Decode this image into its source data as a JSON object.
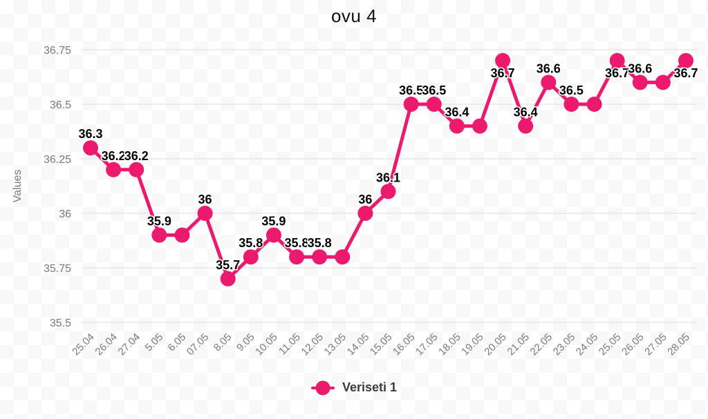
{
  "title": "ovu 4",
  "colors": {
    "series": "#EC1A6E",
    "axis_text": "#7a7a7a",
    "gridline": "#e3e3e3",
    "point_label": "#000000",
    "title": "#111111",
    "legend_text": "#3c3c3c",
    "background": "#ffffff"
  },
  "legend": {
    "position": "bottom",
    "items": [
      {
        "label": "Veriseti 1",
        "color": "#EC1A6E"
      }
    ]
  },
  "chart_data": {
    "type": "line",
    "title": "ovu 4",
    "xlabel": "",
    "ylabel": "Values",
    "x": [
      "25.04",
      "26.04",
      "27.04",
      "5.05",
      "6.05",
      "07.05",
      "8.05",
      "9.05",
      "10.05",
      "11.05",
      "12.05",
      "13.05",
      "14.05",
      "15.05",
      "16.05",
      "17.05",
      "18.05",
      "19.05",
      "20.05",
      "21.05",
      "22.05",
      "23.05",
      "24.05",
      "25.05",
      "26.05",
      "27.05",
      "28.05"
    ],
    "series": [
      {
        "name": "Veriseti 1",
        "color": "#EC1A6E",
        "values": [
          36.3,
          36.2,
          36.2,
          35.9,
          35.9,
          36,
          35.7,
          35.8,
          35.9,
          35.8,
          35.8,
          35.8,
          36,
          36.1,
          36.5,
          36.5,
          36.4,
          36.4,
          36.7,
          36.4,
          36.6,
          36.5,
          36.5,
          36.7,
          36.6,
          36.6,
          36.7
        ],
        "point_labels": [
          "36.3",
          "36.2",
          "36.2",
          "35.9",
          "",
          "36",
          "35.7",
          "35.8",
          "35.9",
          "35.8",
          "35.8",
          "",
          "36",
          "36.1",
          "36.5",
          "36.5",
          "36.4",
          "",
          "36.7",
          "36.4",
          "36.6",
          "36.5",
          "",
          "36.7",
          "36.6",
          "",
          "36.7"
        ]
      }
    ],
    "ylim": [
      35.5,
      36.75
    ],
    "yticks": [
      "36.75",
      "36.5",
      "36.25",
      "36",
      "35.75",
      "35.5"
    ],
    "grid": "horizontal",
    "legend_position": "bottom"
  }
}
